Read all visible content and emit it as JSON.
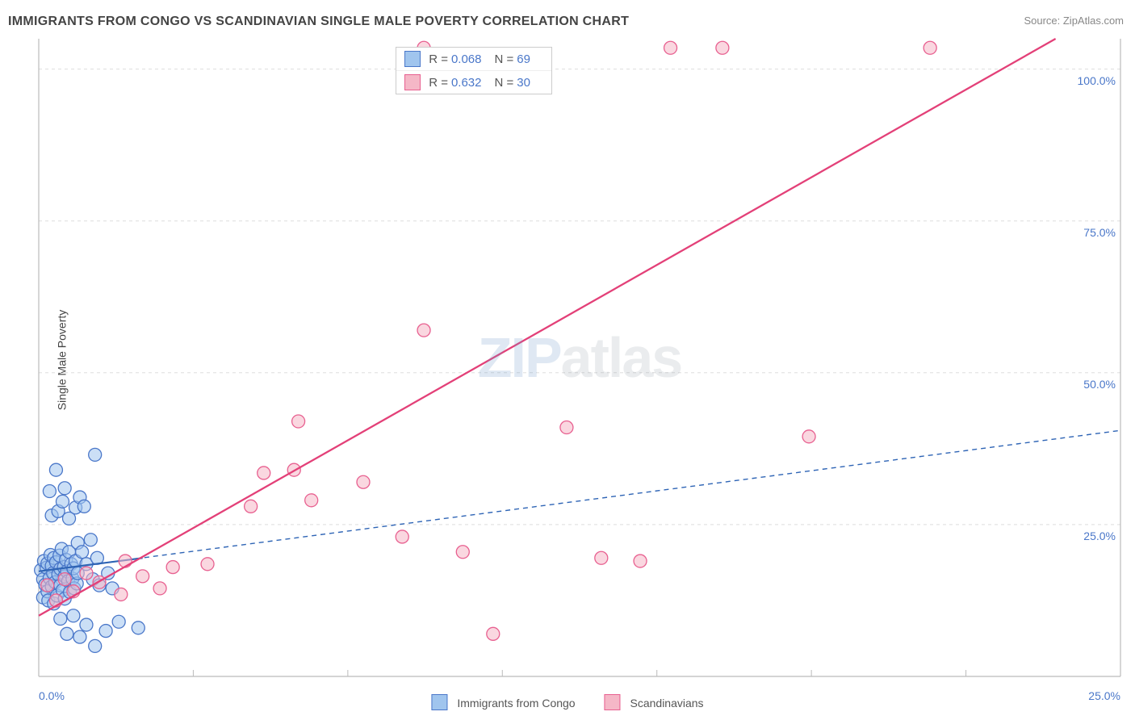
{
  "title": "IMMIGRANTS FROM CONGO VS SCANDINAVIAN SINGLE MALE POVERTY CORRELATION CHART",
  "source": "Source: ZipAtlas.com",
  "ylabel": "Single Male Poverty",
  "watermark": {
    "part1": "ZIP",
    "part2": "atlas"
  },
  "chart": {
    "type": "scatter",
    "background_color": "#ffffff",
    "border_color": "#bbbbbb",
    "grid_color": "#dddddd",
    "grid_dash": "4,4",
    "xlim": [
      0,
      25
    ],
    "ylim": [
      0,
      105
    ],
    "xticks": [
      0,
      25
    ],
    "xtick_labels": [
      "0.0%",
      "25.0%"
    ],
    "yticks": [
      25,
      50,
      75,
      100
    ],
    "ytick_labels": [
      "25.0%",
      "50.0%",
      "75.0%",
      "100.0%"
    ],
    "tick_color": "#4a77c9",
    "tick_fontsize": 14,
    "marker_radius": 8,
    "marker_stroke_width": 1.3,
    "minor_xtick_count": 6
  },
  "series": [
    {
      "name": "Immigrants from Congo",
      "fill": "#a0c5ee",
      "fill_opacity": 0.55,
      "stroke": "#4a77c9",
      "trend_color": "#2e64b5",
      "trend_dash": "6,5",
      "trend_width": 1.4,
      "r_label": "R =",
      "r_value": "0.068",
      "n_label": "N =",
      "n_value": "69",
      "trend": {
        "x1": 0,
        "y1": 17.3,
        "x2": 25,
        "y2": 40.5
      },
      "solid_trend": {
        "x1": 0,
        "y1": 17.3,
        "x2": 2.4,
        "y2": 19.5,
        "width": 2.2
      },
      "points": [
        [
          0.05,
          17.5
        ],
        [
          0.1,
          16.0
        ],
        [
          0.1,
          13.0
        ],
        [
          0.12,
          19.0
        ],
        [
          0.15,
          15.1
        ],
        [
          0.18,
          17.9
        ],
        [
          0.2,
          14.0
        ],
        [
          0.2,
          18.6
        ],
        [
          0.22,
          12.5
        ],
        [
          0.25,
          16.2
        ],
        [
          0.27,
          20.0
        ],
        [
          0.3,
          14.8
        ],
        [
          0.3,
          18.2
        ],
        [
          0.33,
          17.0
        ],
        [
          0.35,
          19.5
        ],
        [
          0.35,
          12.0
        ],
        [
          0.38,
          15.5
        ],
        [
          0.4,
          18.8
        ],
        [
          0.42,
          13.3
        ],
        [
          0.45,
          16.8
        ],
        [
          0.48,
          19.9
        ],
        [
          0.5,
          15.0
        ],
        [
          0.5,
          17.7
        ],
        [
          0.53,
          21.0
        ],
        [
          0.55,
          14.2
        ],
        [
          0.58,
          18.0
        ],
        [
          0.6,
          16.5
        ],
        [
          0.6,
          12.8
        ],
        [
          0.63,
          19.2
        ],
        [
          0.65,
          17.3
        ],
        [
          0.68,
          15.7
        ],
        [
          0.7,
          20.5
        ],
        [
          0.72,
          13.9
        ],
        [
          0.75,
          18.5
        ],
        [
          0.78,
          16.1
        ],
        [
          0.8,
          17.8
        ],
        [
          0.82,
          14.5
        ],
        [
          0.85,
          19.0
        ],
        [
          0.88,
          15.3
        ],
        [
          0.9,
          17.0
        ],
        [
          0.3,
          26.5
        ],
        [
          0.45,
          27.2
        ],
        [
          0.55,
          28.8
        ],
        [
          0.7,
          26.0
        ],
        [
          0.85,
          27.8
        ],
        [
          0.25,
          30.5
        ],
        [
          0.6,
          31.0
        ],
        [
          0.4,
          34.0
        ],
        [
          0.95,
          29.5
        ],
        [
          1.05,
          28.0
        ],
        [
          0.9,
          22.0
        ],
        [
          1.0,
          20.5
        ],
        [
          1.1,
          18.5
        ],
        [
          1.25,
          16.0
        ],
        [
          1.2,
          22.5
        ],
        [
          1.35,
          19.5
        ],
        [
          1.4,
          15.0
        ],
        [
          1.6,
          17.0
        ],
        [
          1.7,
          14.5
        ],
        [
          0.5,
          9.5
        ],
        [
          0.65,
          7.0
        ],
        [
          0.8,
          10.0
        ],
        [
          0.95,
          6.5
        ],
        [
          1.1,
          8.5
        ],
        [
          1.3,
          5.0
        ],
        [
          1.55,
          7.5
        ],
        [
          1.85,
          9.0
        ],
        [
          2.3,
          8.0
        ],
        [
          1.3,
          36.5
        ]
      ]
    },
    {
      "name": "Scandinavians",
      "fill": "#f5b7c7",
      "fill_opacity": 0.55,
      "stroke": "#e86090",
      "trend_color": "#e34078",
      "trend_dash": "",
      "trend_width": 2.3,
      "r_label": "R =",
      "r_value": "0.632",
      "n_label": "N =",
      "n_value": "30",
      "trend": {
        "x1": 0,
        "y1": 10.0,
        "x2": 23.5,
        "y2": 105
      },
      "points": [
        [
          0.2,
          15.0
        ],
        [
          0.4,
          12.5
        ],
        [
          0.6,
          16.0
        ],
        [
          0.8,
          14.0
        ],
        [
          1.1,
          17.0
        ],
        [
          1.4,
          15.5
        ],
        [
          1.9,
          13.5
        ],
        [
          2.4,
          16.5
        ],
        [
          2.8,
          14.5
        ],
        [
          2.0,
          19.0
        ],
        [
          3.1,
          18.0
        ],
        [
          3.9,
          18.5
        ],
        [
          4.9,
          28.0
        ],
        [
          5.2,
          33.5
        ],
        [
          5.9,
          34.0
        ],
        [
          6.3,
          29.0
        ],
        [
          7.5,
          32.0
        ],
        [
          8.4,
          23.0
        ],
        [
          9.8,
          20.5
        ],
        [
          12.2,
          41.0
        ],
        [
          13.0,
          19.5
        ],
        [
          13.9,
          19.0
        ],
        [
          17.8,
          39.5
        ],
        [
          10.5,
          7.0
        ],
        [
          8.9,
          103.5
        ],
        [
          14.6,
          103.5
        ],
        [
          15.8,
          103.5
        ],
        [
          20.6,
          103.5
        ],
        [
          8.9,
          57.0
        ],
        [
          6.0,
          42.0
        ]
      ]
    }
  ],
  "legend": {
    "label1": "Immigrants from Congo",
    "label2": "Scandinavians"
  }
}
